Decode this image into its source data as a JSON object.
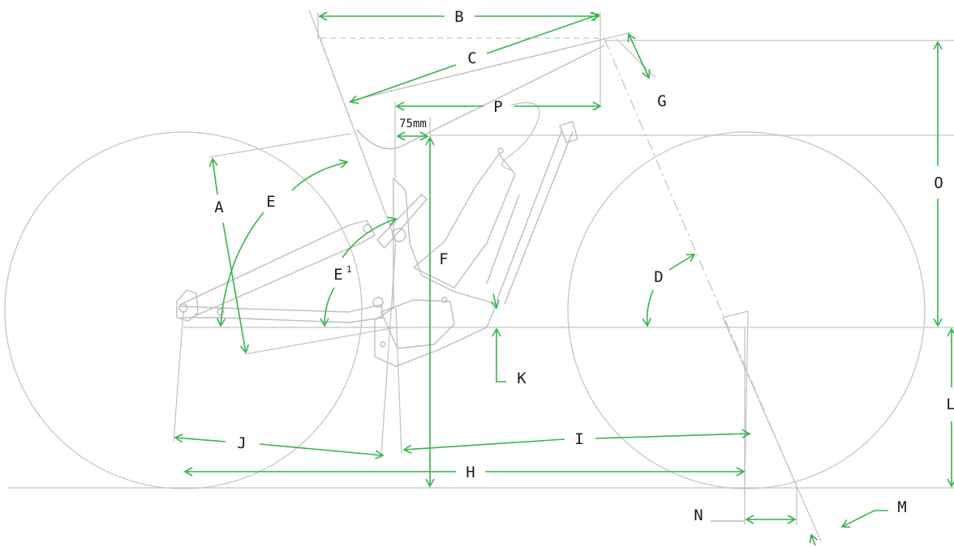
{
  "labels": {
    "A": "A",
    "B": "B",
    "C": "C",
    "D": "D",
    "E": "E",
    "E1": "E",
    "E1_sup": "1",
    "F": "F",
    "G": "G",
    "H": "H",
    "I": "I",
    "J": "J",
    "K": "K",
    "L": "L",
    "M": "M",
    "N": "N",
    "O": "O",
    "P": "P"
  },
  "measurement_note": "75mm",
  "colors": {
    "dimension_arrow": "#34b44a",
    "frame_lines": "#c4c4c4",
    "label_text": "#1a1a1a",
    "background": "#ffffff"
  },
  "arrowheads": "open-chevron"
}
